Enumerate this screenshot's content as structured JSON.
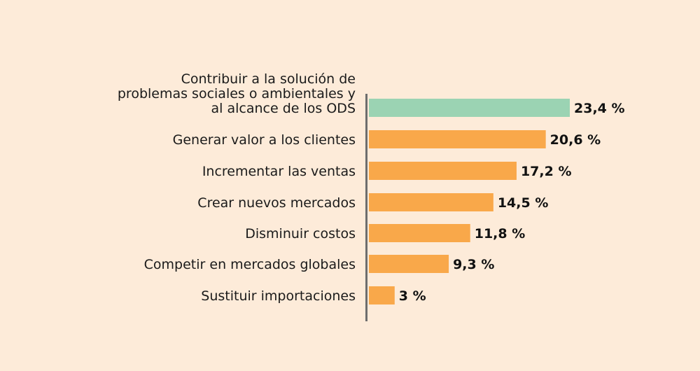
{
  "chart_data": {
    "type": "bar",
    "orientation": "horizontal",
    "categories": [
      [
        "Contribuir a la solución de",
        "problemas sociales o ambientales y",
        "al alcance de los ODS"
      ],
      [
        "Generar valor a los clientes"
      ],
      [
        "Incrementar las ventas"
      ],
      [
        "Crear nuevos mercados"
      ],
      [
        "Disminuir costos"
      ],
      [
        "Competir en mercados globales"
      ],
      [
        "Sustituir importaciones"
      ]
    ],
    "values": [
      23.4,
      20.6,
      17.2,
      14.5,
      11.8,
      9.3,
      3
    ],
    "value_labels": [
      "23,4 %",
      "20,6 %",
      "17,2 %",
      "14,5 %",
      "11,8 %",
      "9,3 %",
      "3 %"
    ],
    "bar_colors": [
      "#9BD3B3",
      "#F9A84A",
      "#F9A84A",
      "#F9A84A",
      "#F9A84A",
      "#F9A84A",
      "#F9A84A"
    ],
    "axis_color": "#6d6d6d",
    "background": "#FDEBD9",
    "xlim": [
      0,
      23.4
    ],
    "grid": false,
    "legend": "none"
  }
}
